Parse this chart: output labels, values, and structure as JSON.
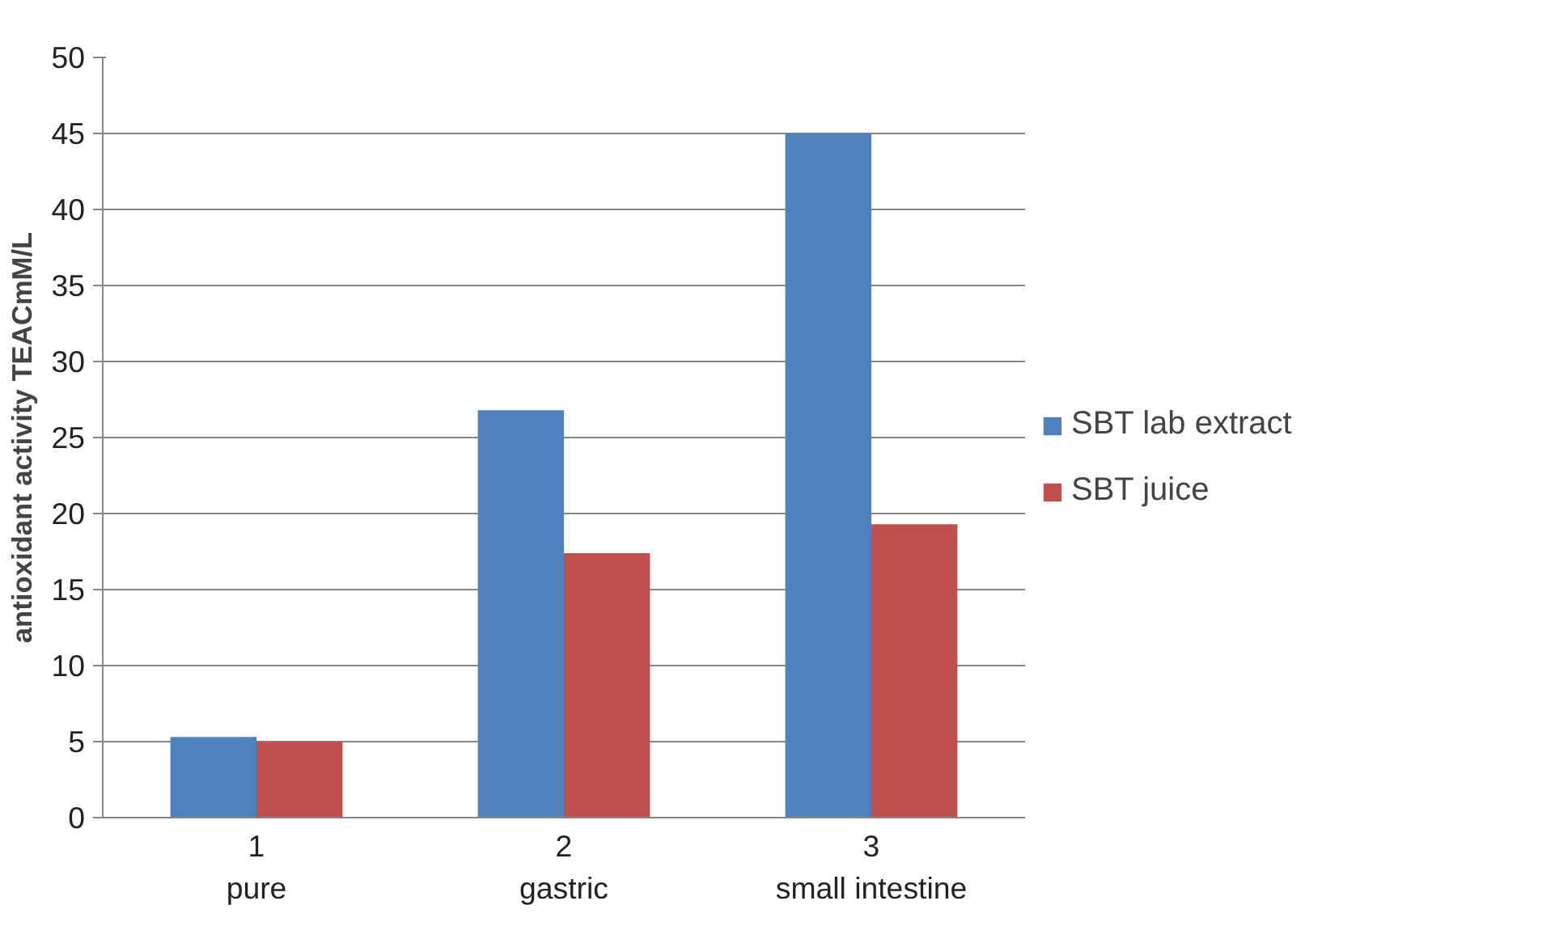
{
  "chart_data": {
    "type": "bar",
    "ylabel": "antioxidant activity TEACmM/L",
    "categories": [
      "1",
      "2",
      "3"
    ],
    "series": [
      {
        "name": "SBT lab extract",
        "color": "#4f81bd",
        "values": [
          5.3,
          26.8,
          45.0
        ]
      },
      {
        "name": "SBT juice",
        "color": "#c0504d",
        "values": [
          5.0,
          17.4,
          19.3
        ]
      }
    ],
    "annotations": [
      "pure",
      "gastric",
      "small intestine"
    ],
    "ylim": [
      0,
      50
    ],
    "yticks": [
      0,
      5,
      10,
      15,
      20,
      25,
      30,
      35,
      40,
      45,
      50
    ],
    "grid": "y",
    "legend": "right"
  }
}
